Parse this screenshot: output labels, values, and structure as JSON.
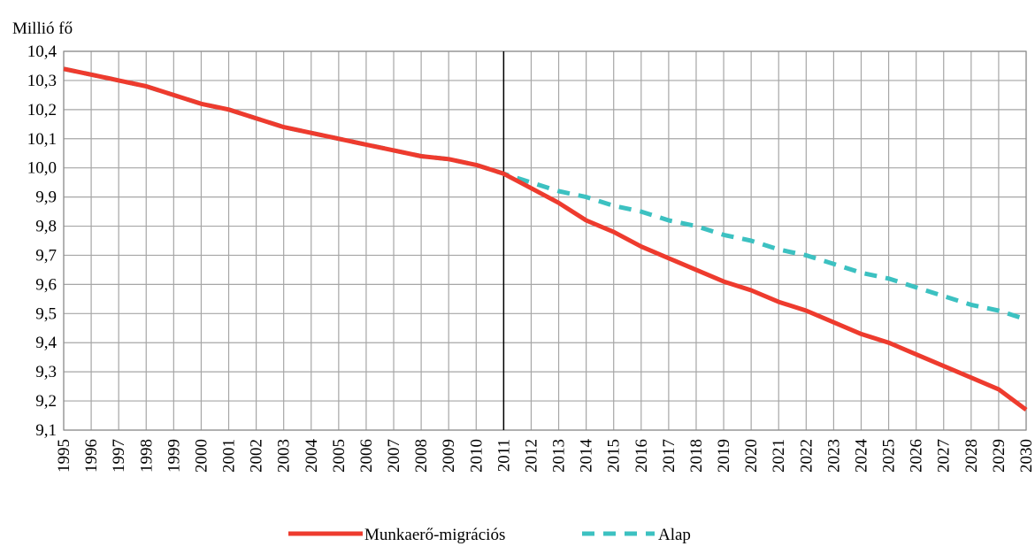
{
  "chart_data": {
    "type": "line",
    "title": "",
    "ylabel": "Millió fő",
    "xlabel": "",
    "ylim": [
      9.1,
      10.4
    ],
    "y_ticks": [
      "10,4",
      "10,3",
      "10,2",
      "10,1",
      "10,0",
      "9,9",
      "9,8",
      "9,7",
      "9,6",
      "9,5",
      "9,4",
      "9,3",
      "9,2",
      "9,1"
    ],
    "y_tick_values": [
      10.4,
      10.3,
      10.2,
      10.1,
      10.0,
      9.9,
      9.8,
      9.7,
      9.6,
      9.5,
      9.4,
      9.3,
      9.2,
      9.1
    ],
    "categories": [
      "1995",
      "1996",
      "1997",
      "1998",
      "1999",
      "2000",
      "2001",
      "2002",
      "2003",
      "2004",
      "2005",
      "2006",
      "2007",
      "2008",
      "2009",
      "2010",
      "2011",
      "2012",
      "2013",
      "2014",
      "2015",
      "2016",
      "2017",
      "2018",
      "2019",
      "2020",
      "2021",
      "2022",
      "2023",
      "2024",
      "2025",
      "2026",
      "2027",
      "2028",
      "2029",
      "2030"
    ],
    "grid": true,
    "vertical_marker": "2011",
    "legend_position": "bottom",
    "series": [
      {
        "name": "Munkaerő-migrációs",
        "color": "#ee3b2e",
        "style": "solid",
        "values": [
          10.34,
          10.32,
          10.3,
          10.28,
          10.25,
          10.22,
          10.2,
          10.17,
          10.14,
          10.12,
          10.1,
          10.08,
          10.06,
          10.04,
          10.03,
          10.01,
          9.98,
          9.93,
          9.88,
          9.82,
          9.78,
          9.73,
          9.69,
          9.65,
          9.61,
          9.58,
          9.54,
          9.51,
          9.47,
          9.43,
          9.4,
          9.36,
          9.32,
          9.28,
          9.24,
          9.17
        ]
      },
      {
        "name": "Alap",
        "color": "#3cc1c1",
        "style": "dashed",
        "values": [
          10.34,
          10.32,
          10.3,
          10.28,
          10.25,
          10.22,
          10.2,
          10.17,
          10.14,
          10.12,
          10.1,
          10.08,
          10.06,
          10.04,
          10.03,
          10.01,
          9.98,
          9.95,
          9.92,
          9.9,
          9.87,
          9.85,
          9.82,
          9.8,
          9.77,
          9.75,
          9.72,
          9.7,
          9.67,
          9.64,
          9.62,
          9.59,
          9.56,
          9.53,
          9.51,
          9.48
        ]
      }
    ]
  }
}
